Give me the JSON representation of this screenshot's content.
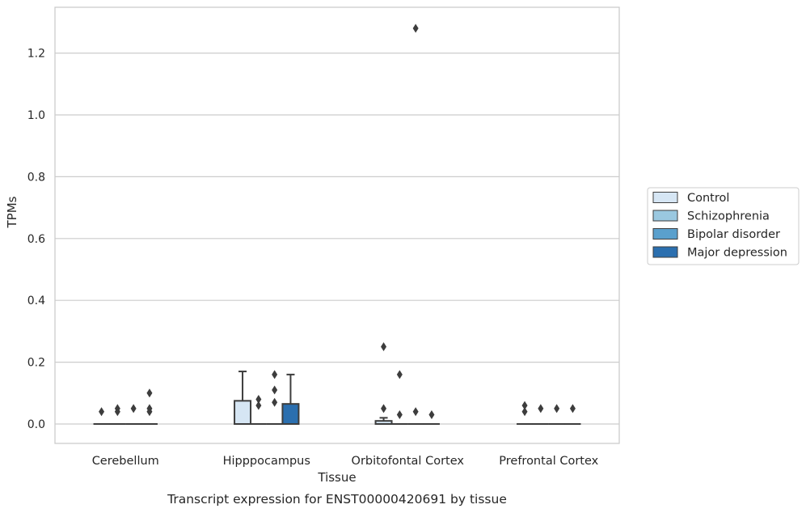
{
  "chart_data": {
    "type": "box",
    "title": "",
    "caption": "Transcript expression for ENST00000420691 by tissue",
    "xlabel": "Tissue",
    "ylabel": "TPMs",
    "ylim": [
      -0.062,
      1.35
    ],
    "yticks": [
      "0.0",
      "0.2",
      "0.4",
      "0.6",
      "0.8",
      "1.0",
      "1.2"
    ],
    "ytick_values": [
      0.0,
      0.2,
      0.4,
      0.6,
      0.8,
      1.0,
      1.2
    ],
    "grid": "horizontal",
    "legend_position": "right",
    "categories": [
      "Cerebellum",
      "Hipppocampus",
      "Orbitofontal Cortex",
      "Prefrontal Cortex"
    ],
    "series": [
      {
        "name": "Control",
        "color": "#d6e6f4",
        "boxes": [
          {
            "q1": 0,
            "median": 0,
            "q3": 0,
            "whisker_low": 0,
            "whisker_high": 0,
            "outliers": [
              0.04
            ]
          },
          {
            "q1": 0,
            "median": 0,
            "q3": 0.075,
            "whisker_low": 0,
            "whisker_high": 0.17,
            "outliers": []
          },
          {
            "q1": 0,
            "median": 0,
            "q3": 0.01,
            "whisker_low": 0,
            "whisker_high": 0.02,
            "outliers": [
              0.25,
              0.05
            ]
          },
          {
            "q1": 0,
            "median": 0,
            "q3": 0,
            "whisker_low": 0,
            "whisker_high": 0,
            "outliers": [
              0.06,
              0.04
            ]
          }
        ]
      },
      {
        "name": "Schizophrenia",
        "color": "#9ac8e0",
        "boxes": [
          {
            "q1": 0,
            "median": 0,
            "q3": 0,
            "whisker_low": 0,
            "whisker_high": 0,
            "outliers": [
              0.05,
              0.04
            ]
          },
          {
            "q1": 0,
            "median": 0,
            "q3": 0,
            "whisker_low": 0,
            "whisker_high": 0,
            "outliers": [
              0.08,
              0.06
            ]
          },
          {
            "q1": 0,
            "median": 0,
            "q3": 0,
            "whisker_low": 0,
            "whisker_high": 0,
            "outliers": [
              0.16,
              0.03
            ]
          },
          {
            "q1": 0,
            "median": 0,
            "q3": 0,
            "whisker_low": 0,
            "whisker_high": 0,
            "outliers": [
              0.05
            ]
          }
        ]
      },
      {
        "name": "Bipolar disorder",
        "color": "#5aa0cd",
        "boxes": [
          {
            "q1": 0,
            "median": 0,
            "q3": 0,
            "whisker_low": 0,
            "whisker_high": 0,
            "outliers": [
              0.05
            ]
          },
          {
            "q1": 0,
            "median": 0,
            "q3": 0,
            "whisker_low": 0,
            "whisker_high": 0,
            "outliers": [
              0.16,
              0.11,
              0.07
            ]
          },
          {
            "q1": 0,
            "median": 0,
            "q3": 0,
            "whisker_low": 0,
            "whisker_high": 0,
            "outliers": [
              1.28,
              0.04
            ]
          },
          {
            "q1": 0,
            "median": 0,
            "q3": 0,
            "whisker_low": 0,
            "whisker_high": 0,
            "outliers": [
              0.05
            ]
          }
        ]
      },
      {
        "name": "Major depression",
        "color": "#2b6faf",
        "boxes": [
          {
            "q1": 0,
            "median": 0,
            "q3": 0,
            "whisker_low": 0,
            "whisker_high": 0,
            "outliers": [
              0.1,
              0.05,
              0.04
            ]
          },
          {
            "q1": 0,
            "median": 0,
            "q3": 0.065,
            "whisker_low": 0,
            "whisker_high": 0.16,
            "outliers": []
          },
          {
            "q1": 0,
            "median": 0,
            "q3": 0,
            "whisker_low": 0,
            "whisker_high": 0,
            "outliers": [
              0.03
            ]
          },
          {
            "q1": 0,
            "median": 0,
            "q3": 0,
            "whisker_low": 0,
            "whisker_high": 0,
            "outliers": [
              0.05
            ]
          }
        ]
      }
    ]
  }
}
